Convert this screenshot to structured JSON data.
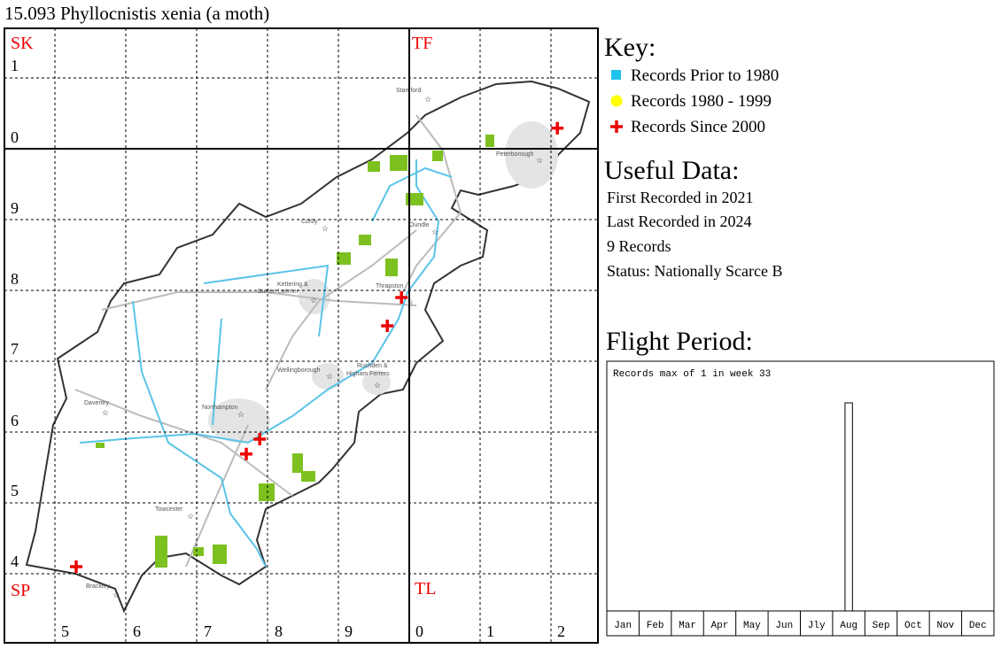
{
  "title": "15.093 Phyllocnistis xenia (a moth)",
  "map": {
    "squares": [
      "SK",
      "TF",
      "SP",
      "TL"
    ],
    "row_labels": [
      "1",
      "0",
      "9",
      "8",
      "7",
      "6",
      "5",
      "4"
    ],
    "column_labels": [
      "5",
      "6",
      "7",
      "8",
      "9",
      "0",
      "1",
      "2"
    ],
    "places": [
      "Stamford",
      "Peterborough",
      "Corby",
      "Oundle",
      "Kettering &",
      "Burton Latimer",
      "Thrapston",
      "Wellingborough",
      "Rushden &",
      "Higham Ferrers",
      "Daventry",
      "Northampton",
      "Towcester",
      "Brackley"
    ],
    "records": [
      {
        "easting": 520.9,
        "northing": 302.9
      },
      {
        "easting": 498.9,
        "northing": 279
      },
      {
        "easting": 496.9,
        "northing": 275
      },
      {
        "easting": 478.9,
        "northing": 259
      },
      {
        "easting": 477,
        "northing": 256.9
      },
      {
        "easting": 453,
        "northing": 241
      }
    ]
  },
  "key": {
    "title": "Key:",
    "items": [
      "Records Prior to 1980",
      "Records 1980 - 1999",
      "Records Since 2000"
    ]
  },
  "useful_data": {
    "title": "Useful Data:",
    "lines": [
      "First Recorded in 2021",
      "Last Recorded in 2024",
      "9 Records",
      "Status: Nationally Scarce B"
    ]
  },
  "flight_period": {
    "title": "Flight Period:"
  },
  "chart_data": {
    "type": "bar",
    "note": "Records max of 1 in week 33",
    "categories": [
      "Jan",
      "Feb",
      "Mar",
      "Apr",
      "May",
      "Jun",
      "Jly",
      "Aug",
      "Sep",
      "Oct",
      "Nov",
      "Dec"
    ],
    "x": [
      33
    ],
    "values": [
      1
    ],
    "xlim": [
      0,
      52
    ],
    "ylim": [
      0,
      1.2
    ]
  }
}
